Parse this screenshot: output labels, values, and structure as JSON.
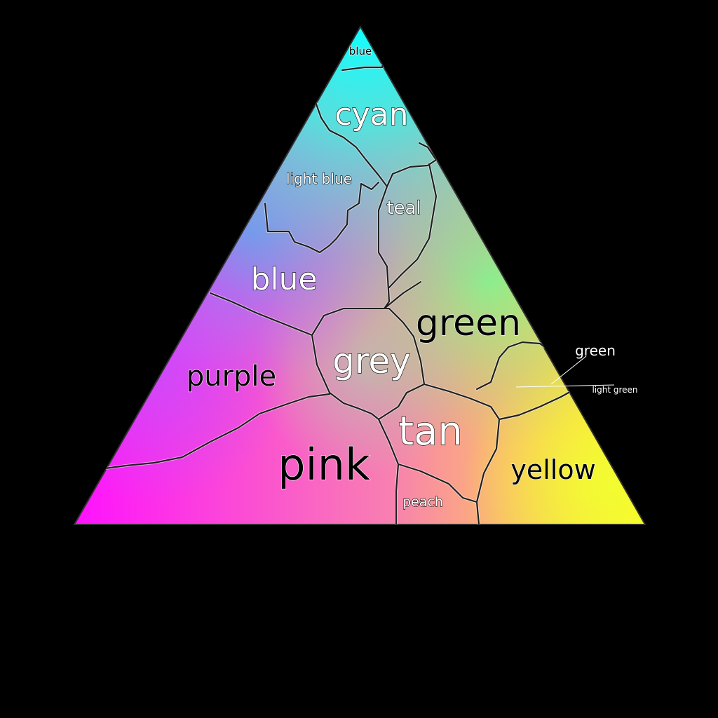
{
  "colors": {
    "background": "#000000",
    "corner_top": "#00ffff",
    "corner_left": "#ff00ff",
    "corner_right": "#ffff00",
    "center": "#bbbbbb",
    "boundary_line": "#202020",
    "label_light_fill": "#ffffff",
    "label_dark_fill": "#000000"
  },
  "regions": [
    {
      "id": "blue-top",
      "label": "blue",
      "tone": "dark"
    },
    {
      "id": "cyan",
      "label": "cyan",
      "tone": "light"
    },
    {
      "id": "light-blue",
      "label": "light blue",
      "tone": "light"
    },
    {
      "id": "teal",
      "label": "teal",
      "tone": "light"
    },
    {
      "id": "blue",
      "label": "blue",
      "tone": "light"
    },
    {
      "id": "green",
      "label": "green",
      "tone": "dark"
    },
    {
      "id": "grey",
      "label": "grey",
      "tone": "light"
    },
    {
      "id": "purple",
      "label": "purple",
      "tone": "dark"
    },
    {
      "id": "tan",
      "label": "tan",
      "tone": "light"
    },
    {
      "id": "pink",
      "label": "pink",
      "tone": "dark"
    },
    {
      "id": "yellow",
      "label": "yellow",
      "tone": "dark"
    },
    {
      "id": "peach",
      "label": "peach",
      "tone": "light"
    }
  ],
  "callouts": [
    {
      "id": "green-small",
      "label": "green"
    },
    {
      "id": "light-green",
      "label": "light green"
    }
  ]
}
